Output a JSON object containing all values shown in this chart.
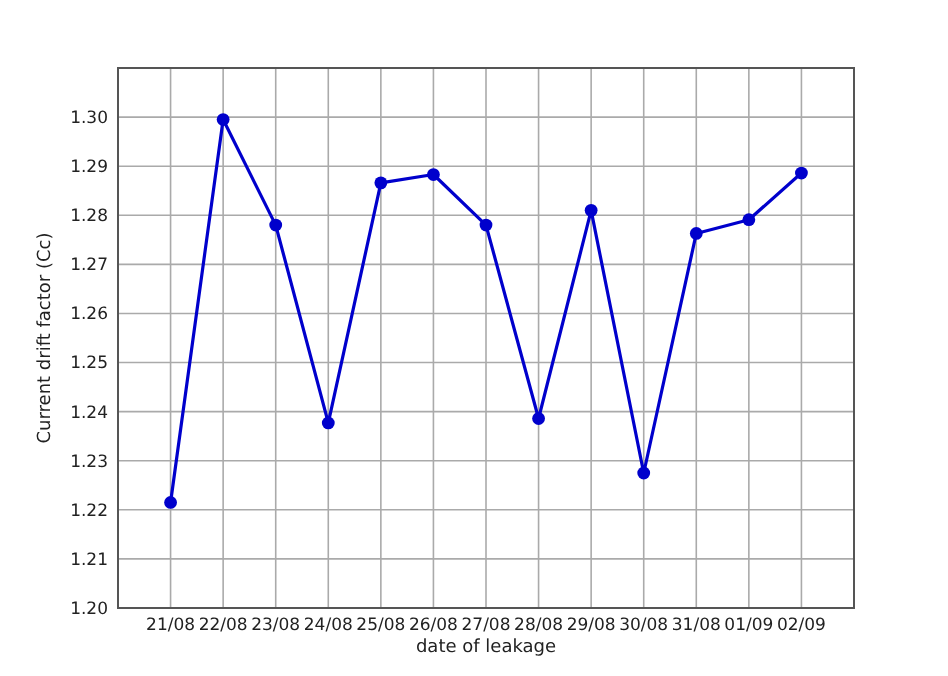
{
  "chart_data": {
    "type": "line",
    "xlabel": "date of leakage",
    "ylabel": "Current drift factor (Cc)",
    "categories": [
      "21/08",
      "22/08",
      "23/08",
      "24/08",
      "25/08",
      "26/08",
      "27/08",
      "28/08",
      "29/08",
      "30/08",
      "31/08",
      "01/09",
      "02/09"
    ],
    "series": [
      {
        "color": "#0000cc",
        "values": [
          1.2215,
          1.2995,
          1.278,
          1.2377,
          1.2866,
          1.2883,
          1.278,
          1.2386,
          1.281,
          1.2275,
          1.2763,
          1.2791,
          1.2886
        ]
      }
    ],
    "ylim": [
      1.2,
      1.31
    ],
    "yticks": [
      {
        "value": 1.2,
        "label": "1.20"
      },
      {
        "value": 1.21,
        "label": "1.21"
      },
      {
        "value": 1.22,
        "label": "1.22"
      },
      {
        "value": 1.23,
        "label": "1.23"
      },
      {
        "value": 1.24,
        "label": "1.24"
      },
      {
        "value": 1.25,
        "label": "1.25"
      },
      {
        "value": 1.26,
        "label": "1.26"
      },
      {
        "value": 1.27,
        "label": "1.27"
      },
      {
        "value": 1.28,
        "label": "1.28"
      },
      {
        "value": 1.29,
        "label": "1.29"
      },
      {
        "value": 1.3,
        "label": "1.30"
      }
    ],
    "grid": true,
    "marker": "circle",
    "line_style": "solid"
  }
}
